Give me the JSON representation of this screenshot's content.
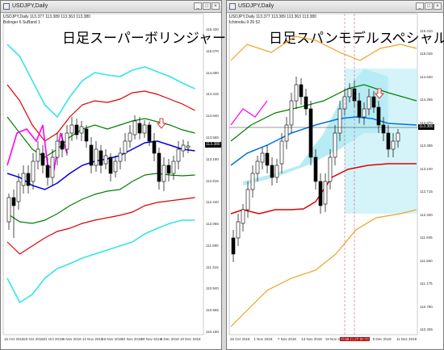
{
  "left": {
    "window_title": "USDJPY,Daily",
    "info_line1": "USDJPY,Daily  113.377 113.389 113.363 113.380",
    "info_line2": "Bolinger 6 SuBand 1",
    "title": "日足スーパーボリンジャー",
    "price_tag": "113.380",
    "price_labels": [
      "115.430",
      "115.070",
      "114.690",
      "114.315",
      "113.940",
      "113.565",
      "113.190",
      "112.815",
      "112.440",
      "112.065",
      "111.690",
      "111.315",
      "110.940",
      "110.565",
      "110.190"
    ],
    "date_labels": [
      "15 Oct 2018",
      "23 Oct 2018",
      "31 Oct 2018",
      "6 Nov 2018",
      "12 Nov 2018",
      "16 Nov 2018",
      "22 Nov 2018",
      "28 Nov 2018",
      "4 Dec 2018",
      "10 Dec 2018"
    ]
  },
  "right": {
    "window_title": "USDJPY,Daily",
    "info_line1": "USDJPY,Daily  113.377 113.389 113.363 113.380",
    "info_line2": "Ichimoku 9 26 52",
    "title": "日足スパンモデルスペシャル",
    "price_tag": "113.380",
    "date_marker": "2018.11.28 00:00",
    "price_labels": [
      "115.410",
      "115.025",
      "114.640",
      "114.255",
      "113.870",
      "113.485",
      "113.100",
      "112.715",
      "112.330",
      "111.945",
      "111.560",
      "111.175",
      "110.790",
      "110.405"
    ],
    "date_labels": [
      "26 Oct 2018",
      "1 Nov 2018",
      "7 Nov 2018",
      "13 Nov 2018",
      "19 Nov 2018",
      "29 Nov 2018",
      "5 Dec 2018",
      "11 Dec 2018"
    ]
  },
  "colors": {
    "left_upper3": "#33e6e6",
    "left_upper2": "#e00000",
    "left_mid": "#0000e0",
    "left_upper1": "#008000",
    "left_lag": "#ff00ff",
    "right_cloud": "#b8ecf5",
    "right_orange": "#f0a020",
    "right_red": "#e00000",
    "right_blue": "#0070e0",
    "right_green": "#008000"
  }
}
